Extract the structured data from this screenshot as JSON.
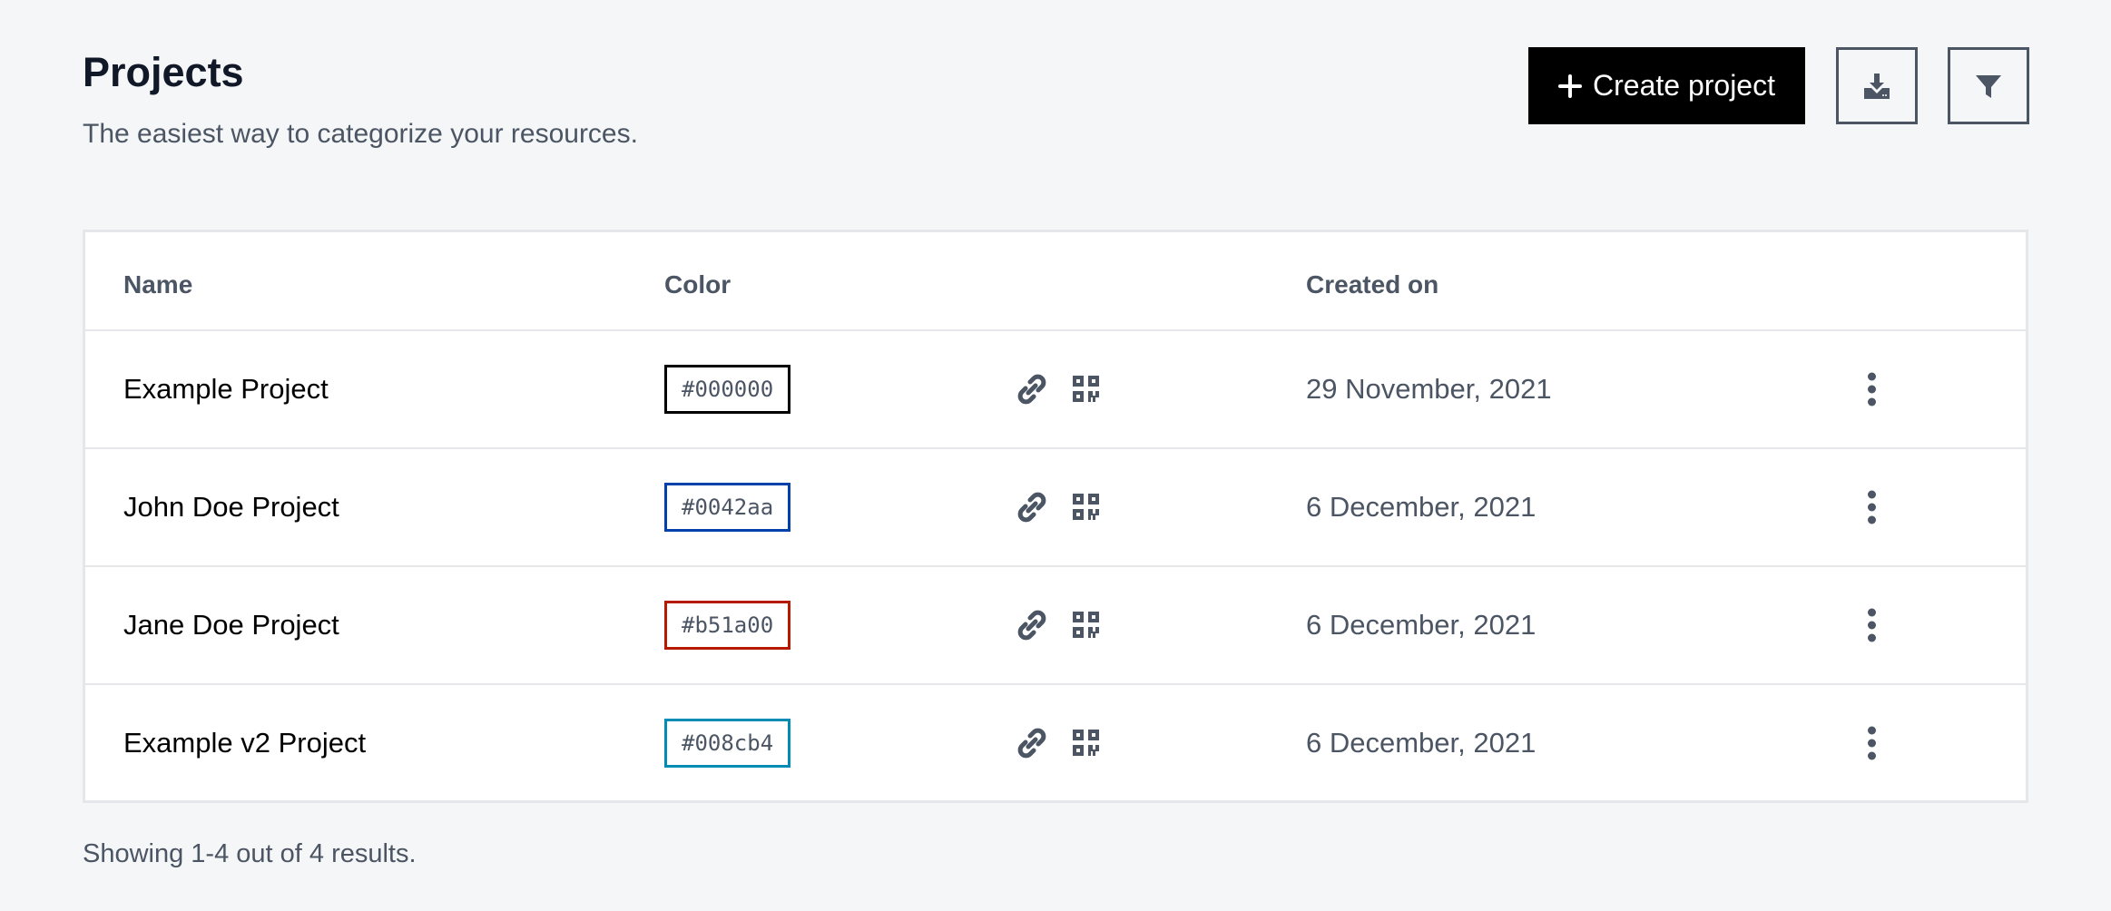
{
  "header": {
    "title": "Projects",
    "subtitle": "The easiest way to categorize your resources.",
    "create_label": "Create project",
    "download_icon": "download-icon",
    "filter_icon": "filter-icon"
  },
  "table": {
    "columns": {
      "name": "Name",
      "color": "Color",
      "created": "Created on"
    },
    "rows": [
      {
        "name": "Example Project",
        "color": "#000000",
        "created": "29 November, 2021"
      },
      {
        "name": "John Doe Project",
        "color": "#0042aa",
        "created": "6 December, 2021"
      },
      {
        "name": "Jane Doe Project",
        "color": "#b51a00",
        "created": "6 December, 2021"
      },
      {
        "name": "Example v2 Project",
        "color": "#008cb4",
        "created": "6 December, 2021"
      }
    ]
  },
  "footer": {
    "text": "Showing 1-4 out of 4 results."
  }
}
